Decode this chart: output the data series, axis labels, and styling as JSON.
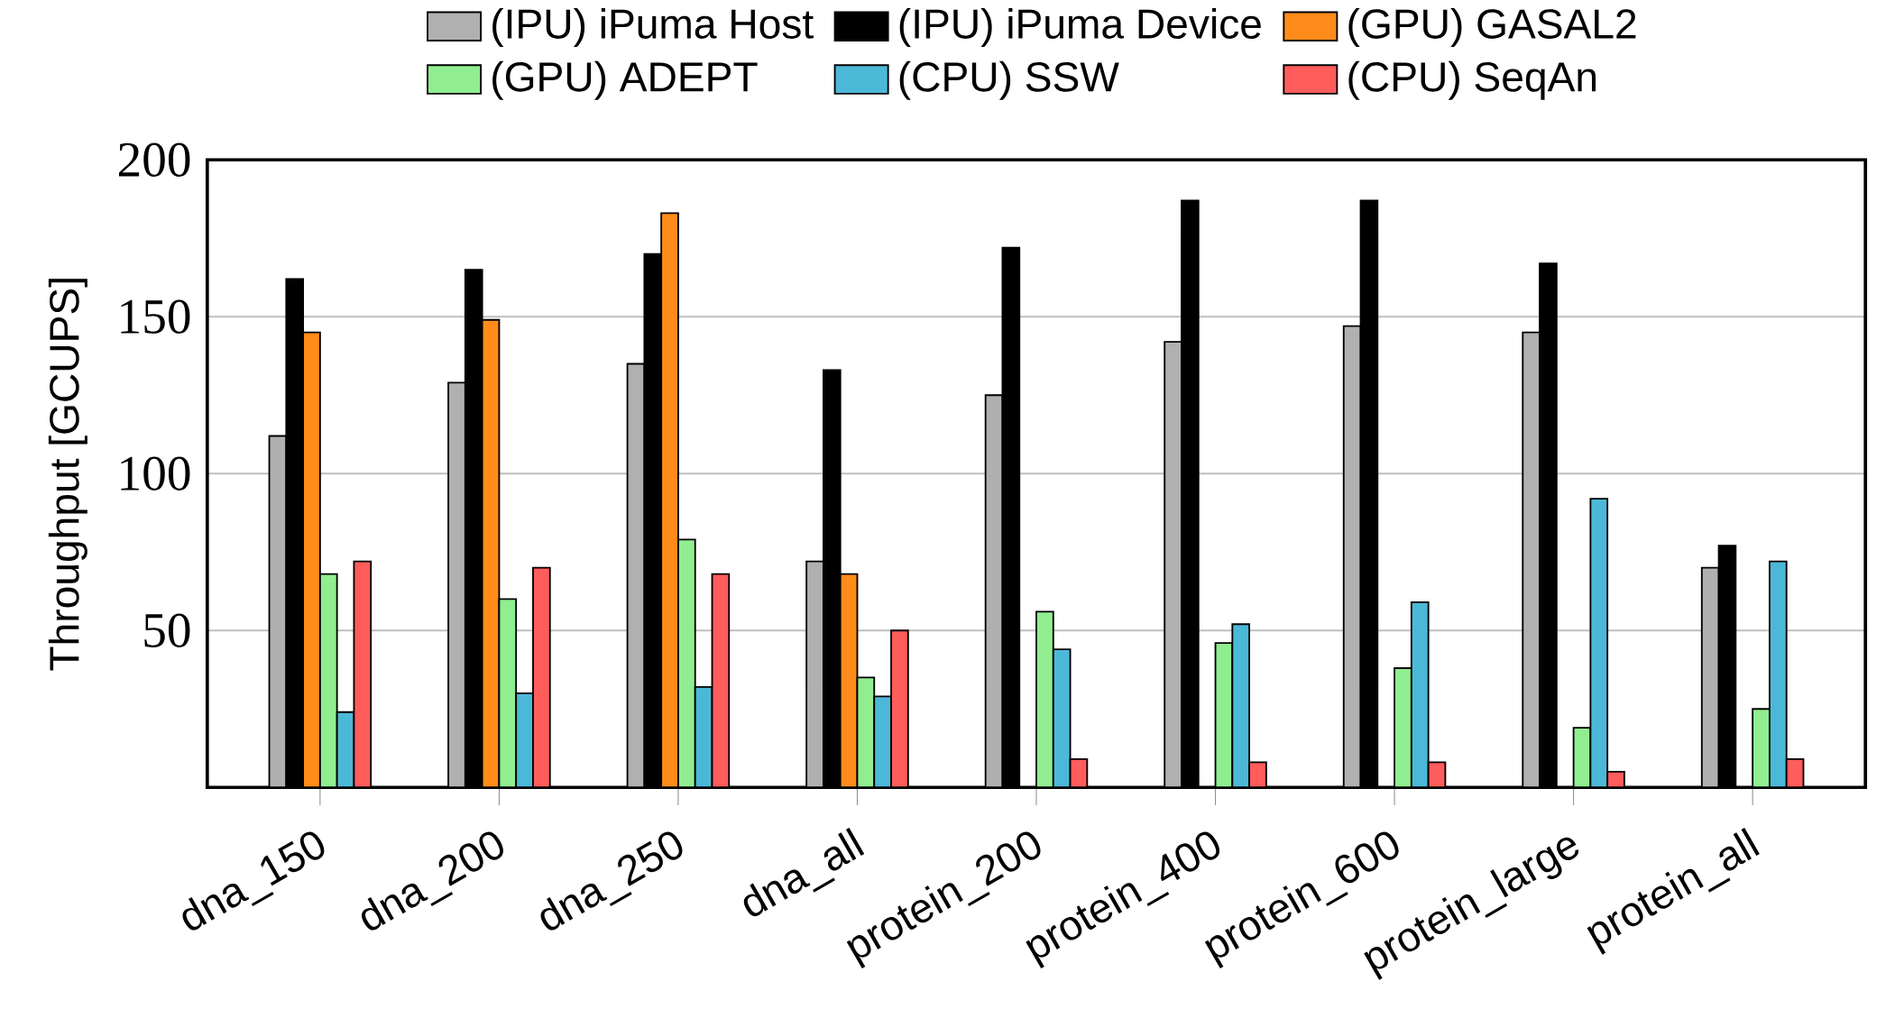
{
  "chart_data": {
    "type": "bar",
    "ylabel": "Throughput [GCUPS]",
    "categories": [
      "dna_150",
      "dna_200",
      "dna_250",
      "dna_all",
      "protein_200",
      "protein_400",
      "protein_600",
      "protein_large",
      "protein_all"
    ],
    "series": [
      {
        "name": "(IPU) iPuma Host",
        "color": "#b0b0b0",
        "values": [
          112,
          129,
          135,
          72,
          125,
          142,
          147,
          145,
          70
        ]
      },
      {
        "name": "(IPU) iPuma Device",
        "color": "#000000",
        "values": [
          162,
          165,
          170,
          133,
          172,
          187,
          187,
          167,
          77
        ]
      },
      {
        "name": "(GPU) GASAL2",
        "color": "#ff8c1a",
        "values": [
          145,
          149,
          183,
          68,
          null,
          null,
          null,
          null,
          null
        ]
      },
      {
        "name": "(GPU) ADEPT",
        "color": "#90ee90",
        "values": [
          68,
          60,
          79,
          35,
          56,
          46,
          38,
          19,
          25
        ]
      },
      {
        "name": "(CPU) SSW",
        "color": "#4cb8d8",
        "values": [
          24,
          30,
          32,
          29,
          44,
          52,
          59,
          92,
          72
        ]
      },
      {
        "name": "(CPU) SeqAn",
        "color": "#ff5c5c",
        "values": [
          72,
          70,
          68,
          50,
          9,
          8,
          8,
          5,
          9
        ]
      }
    ],
    "ylim": [
      0,
      200
    ],
    "yticks": [
      50,
      100,
      150,
      200
    ],
    "grid": "y",
    "legend": "top"
  }
}
